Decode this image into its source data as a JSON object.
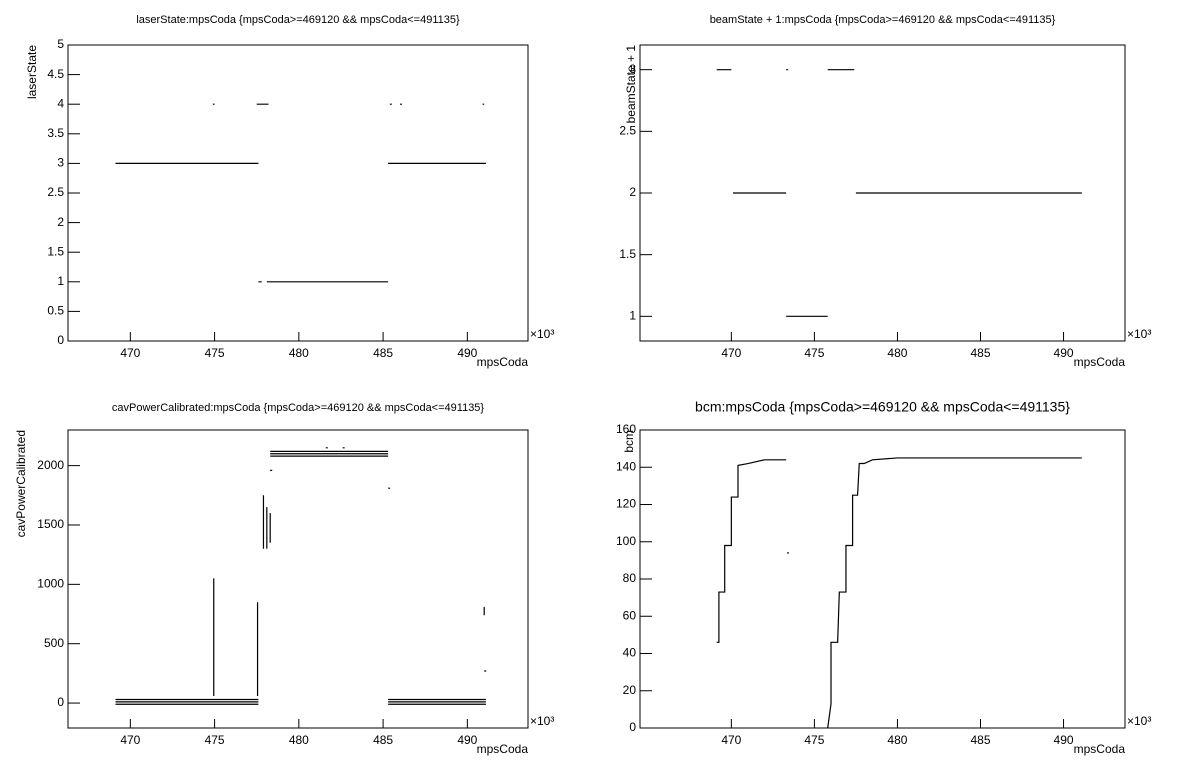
{
  "chart_data": [
    {
      "type": "line",
      "title": "laserState:mpsCoda {mpsCoda>=469120 && mpsCoda<=491135}",
      "x_label": "mpsCoda",
      "y_label": "laserState",
      "x_multiplier": "×10³",
      "x": [
        469.12,
        477.6,
        477.6,
        474.9,
        475.0,
        475.0,
        477.5,
        478.2,
        478.2,
        477.6,
        477.8,
        477.8,
        478.1,
        485.3,
        485.3,
        485.3,
        491.1,
        491.1,
        485.4,
        485.4,
        486.0,
        486.0,
        490.9,
        491.0
      ],
      "values": [
        3,
        3,
        null,
        4,
        4,
        null,
        4,
        4,
        null,
        1,
        1,
        null,
        1,
        1,
        null,
        3,
        3,
        null,
        4,
        null,
        4,
        null,
        4,
        4
      ],
      "color": "#000000",
      "xlim": [
        466.3,
        493.6
      ],
      "xticks": [
        470,
        475,
        480,
        485,
        490
      ],
      "ylim": [
        0,
        5
      ],
      "yticks": [
        0,
        0.5,
        1,
        1.5,
        2,
        2.5,
        3,
        3.5,
        4,
        4.5,
        5
      ]
    },
    {
      "type": "line",
      "title": "beamState + 1:mpsCoda {mpsCoda>=469120 && mpsCoda<=491135}",
      "x_label": "mpsCoda",
      "y_label": "beamState + 1",
      "x_multiplier": "×10³",
      "x": [
        469.12,
        470.0,
        470.0,
        470.1,
        473.3,
        473.3,
        473.3,
        473.3,
        473.3,
        475.8,
        475.8,
        475.8,
        477.4,
        477.4,
        477.5,
        491.1
      ],
      "values": [
        3,
        3,
        null,
        2,
        2,
        null,
        3,
        null,
        1,
        1,
        null,
        3,
        3,
        null,
        2,
        2
      ],
      "color": "#000000",
      "xlim": [
        464.5,
        493.7
      ],
      "xticks": [
        470,
        475,
        480,
        485,
        490
      ],
      "ylim": [
        0.8,
        3.2
      ],
      "yticks": [
        1,
        1.5,
        2,
        2.5,
        3
      ]
    },
    {
      "type": "line",
      "title": "cavPowerCalibrated:mpsCoda {mpsCoda>=469120 && mpsCoda<=491135}",
      "x_label": "mpsCoda",
      "y_label": "cavPowerCalibrated",
      "x_multiplier": "×10³",
      "x": [
        469.12,
        477.6,
        477.6,
        469.12,
        477.6,
        477.6,
        469.12,
        477.6,
        477.6,
        485.3,
        491.1,
        491.1,
        485.3,
        491.1,
        491.1,
        485.3,
        491.1,
        491.1,
        474.95,
        474.95,
        474.95,
        477.55,
        477.55,
        477.55,
        477.9,
        477.9,
        477.9,
        478.1,
        478.1,
        478.1,
        478.3,
        478.3,
        478.3,
        478.3,
        485.3,
        485.3,
        478.3,
        485.3,
        485.3,
        478.3,
        485.3,
        485.3,
        478.3,
        478.3,
        481.6,
        481.6,
        482.6,
        482.6,
        485.3,
        485.3,
        491.0,
        491.0,
        491.0,
        491.0
      ],
      "values": [
        30,
        30,
        null,
        10,
        10,
        null,
        -10,
        -10,
        null,
        30,
        30,
        null,
        10,
        10,
        null,
        -10,
        -10,
        null,
        60,
        1050,
        null,
        60,
        850,
        null,
        1300,
        1750,
        null,
        1300,
        1650,
        null,
        1350,
        1600,
        null,
        2080,
        2080,
        null,
        2100,
        2100,
        null,
        2120,
        2120,
        null,
        1960,
        null,
        2150,
        null,
        2150,
        null,
        1810,
        null,
        810,
        740,
        null,
        270
      ],
      "color": "#000000",
      "xlim": [
        466.3,
        493.6
      ],
      "xticks": [
        470,
        475,
        480,
        485,
        490
      ],
      "ylim": [
        -210,
        2300
      ],
      "yticks": [
        0,
        500,
        1000,
        1500,
        2000
      ]
    },
    {
      "type": "line",
      "title": "bcm:mpsCoda {mpsCoda>=469120 && mpsCoda<=491135}",
      "x_label": "mpsCoda",
      "y_label": "bcm",
      "x_multiplier": "×10³",
      "x": [
        469.12,
        469.25,
        469.25,
        469.6,
        469.6,
        470.0,
        470.0,
        470.4,
        470.4,
        471.0,
        472.0,
        473.3,
        473.3,
        473.35,
        473.35,
        475.8,
        476.0,
        476.0,
        476.4,
        476.5,
        476.9,
        476.9,
        477.3,
        477.3,
        477.6,
        477.7,
        478.0,
        478.5,
        480.0,
        485.0,
        491.1
      ],
      "values": [
        46,
        46,
        73,
        73,
        98,
        98,
        124,
        124,
        141,
        142,
        144,
        144,
        null,
        94,
        null,
        0,
        13,
        46,
        46,
        73,
        73,
        98,
        98,
        125,
        125,
        142,
        142,
        144,
        145,
        145,
        145
      ],
      "color": "#000000",
      "xlim": [
        464.5,
        493.7
      ],
      "xticks": [
        470,
        475,
        480,
        485,
        490
      ],
      "ylim": [
        0,
        160
      ],
      "yticks": [
        0,
        20,
        40,
        60,
        80,
        100,
        120,
        140,
        160
      ]
    }
  ]
}
